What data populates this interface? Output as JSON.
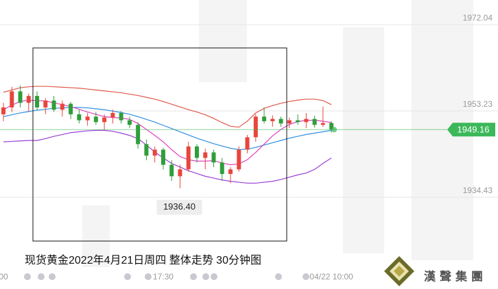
{
  "chart_data": {
    "type": "candlestick",
    "caption": "现货黄金2022年4月21日周四  整体走势 30分钟图",
    "logo": "漢聲集團",
    "categories": [
      "00",
      null,
      null,
      null,
      null,
      null,
      null,
      null,
      null,
      null,
      null,
      null,
      null,
      null,
      null,
      null,
      null,
      null,
      null,
      "17:30",
      null,
      null,
      null,
      null,
      null,
      null,
      null,
      null,
      null,
      null,
      null,
      null,
      null,
      null,
      null,
      null,
      null,
      null,
      null,
      "04/22 10:00"
    ],
    "open": [
      1952.5,
      1954,
      1957.5,
      1955,
      1956.5,
      1954,
      1955.5,
      1953.5,
      1954.8,
      1952.5,
      1951.2,
      1952,
      1950.8,
      1951.8,
      1952.8,
      1951.2,
      1950.2,
      1946,
      1943.5,
      1944.8,
      1941.5,
      1939,
      1940.5,
      1945.5,
      1943,
      1944.2,
      1942,
      1939.5,
      1940.5,
      1944.8,
      1947.5,
      1952,
      1951,
      1951.5,
      1950.5,
      1951.2,
      1950.8,
      1951.5,
      1950.2,
      1950.6
    ],
    "high": [
      1955,
      1958.5,
      1958.8,
      1957,
      1957.5,
      1956,
      1956.5,
      1955.5,
      1955.2,
      1953.5,
      1952.8,
      1953,
      1952.5,
      1953.5,
      1953.2,
      1952,
      1950.8,
      1947,
      1945.5,
      1945.2,
      1942.5,
      1941.5,
      1946.5,
      1946,
      1945,
      1944.8,
      1943,
      1941,
      1945.5,
      1948,
      1952.5,
      1954,
      1952.3,
      1952,
      1951.8,
      1952.5,
      1952.8,
      1952.2,
      1954.2,
      1951
    ],
    "low": [
      1951,
      1953,
      1954,
      1953,
      1953.5,
      1952.5,
      1953,
      1952,
      1951.5,
      1950.5,
      1950,
      1950.2,
      1949,
      1950.5,
      1950.5,
      1949.5,
      1945,
      1942.5,
      1942,
      1940.5,
      1938,
      1936.4,
      1940,
      1942,
      1940.5,
      1941,
      1938,
      1937.5,
      1940,
      1944,
      1946.5,
      1950.5,
      1949.8,
      1949.8,
      1949.5,
      1950.2,
      1949.5,
      1949.6,
      1949.8,
      1948.5
    ],
    "close": [
      1954,
      1957.5,
      1955,
      1956.5,
      1954,
      1955.5,
      1953.5,
      1954.8,
      1952.5,
      1951.2,
      1952,
      1950.8,
      1951.8,
      1952.8,
      1951.2,
      1950.2,
      1946,
      1943.5,
      1944.8,
      1941.5,
      1939,
      1940.5,
      1945.5,
      1943,
      1944.2,
      1942,
      1939.5,
      1940.5,
      1944.8,
      1947.5,
      1952,
      1951,
      1951.5,
      1950.5,
      1951.2,
      1950.8,
      1951.5,
      1950.2,
      1950.6,
      1949.16
    ],
    "up_color": "#e8453c",
    "down_color": "#2f9e3a",
    "series": [
      {
        "color": "#e0574a",
        "values": [
          1957.3,
          1957.8,
          1958.3,
          1958.5,
          1958.6,
          1958.6,
          1958.5,
          1958.4,
          1958.3,
          1958.2,
          1958.0,
          1957.8,
          1957.6,
          1957.4,
          1957.2,
          1956.9,
          1956.6,
          1956.2,
          1955.8,
          1955.3,
          1954.7,
          1954.1,
          1953.5,
          1953.0,
          1952.4,
          1951.6,
          1950.7,
          1949.9,
          1949.7,
          1951.0,
          1952.8,
          1953.8,
          1954.4,
          1954.9,
          1955.3,
          1955.6,
          1955.8,
          1955.8,
          1955.5,
          1954.6
        ]
      },
      {
        "color": "#9b3fd6",
        "values": [
          1946.5,
          1946.6,
          1946.7,
          1946.8,
          1946.8,
          1947.2,
          1947.7,
          1948.1,
          1948.5,
          1948.7,
          1948.9,
          1949.0,
          1949.0,
          1948.8,
          1948.4,
          1947.9,
          1947.2,
          1945.8,
          1944.3,
          1943.0,
          1941.8,
          1941.0,
          1940.2,
          1939.6,
          1939.0,
          1938.6,
          1938.2,
          1937.9,
          1937.7,
          1937.5,
          1937.5,
          1937.7,
          1937.9,
          1938.3,
          1938.8,
          1939.3,
          1939.7,
          1940.5,
          1941.8,
          1943.0
        ]
      },
      {
        "color": "#2e8ee0",
        "values": [
          1952.0,
          1952.4,
          1952.8,
          1953.1,
          1953.4,
          1953.6,
          1953.8,
          1953.9,
          1954.0,
          1954.0,
          1953.9,
          1953.7,
          1953.5,
          1953.2,
          1952.9,
          1952.5,
          1952.0,
          1951.4,
          1950.8,
          1950.1,
          1949.4,
          1948.7,
          1948.0,
          1947.3,
          1946.7,
          1946.1,
          1945.6,
          1945.1,
          1944.8,
          1944.9,
          1945.3,
          1945.8,
          1946.3,
          1946.8,
          1947.3,
          1947.7,
          1948.1,
          1948.4,
          1948.7,
          1949.0
        ]
      },
      {
        "color": "#e040c0",
        "values": [
          1953.5,
          1954.5,
          1955.3,
          1955.6,
          1955.5,
          1955.4,
          1955.0,
          1954.6,
          1954.2,
          1953.6,
          1953.0,
          1952.5,
          1952.0,
          1951.8,
          1951.7,
          1951.4,
          1950.5,
          1949.2,
          1947.9,
          1946.5,
          1944.8,
          1943.3,
          1942.6,
          1942.3,
          1942.3,
          1942.4,
          1941.9,
          1941.5,
          1941.7,
          1942.6,
          1944.2,
          1946.0,
          1947.8,
          1949.2,
          1950.3,
          1950.9,
          1951.2,
          1951.2,
          1951.0,
          1950.7
        ]
      }
    ],
    "low_label": "1936.40",
    "last_price": 1949.16,
    "last_price_color": "#3cb85a",
    "ylim": [
      1918.91,
      1977.41
    ],
    "yticks": [
      1934.43,
      1953.23,
      1972.04
    ],
    "grid": true
  }
}
